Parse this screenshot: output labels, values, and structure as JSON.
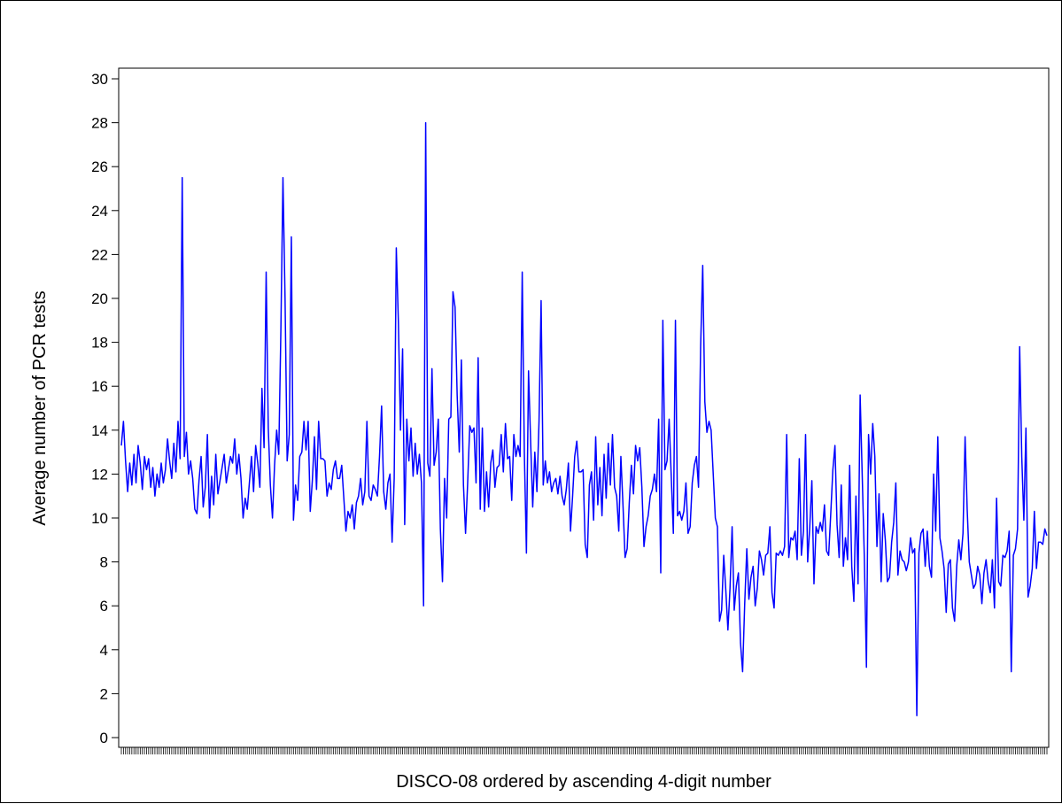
{
  "chart_data": {
    "type": "line",
    "title": "",
    "xlabel": "DISCO-08 ordered by ascending 4-digit number",
    "ylabel": "Average number of PCR tests",
    "ylim": [
      0,
      30
    ],
    "yticks": [
      0,
      2,
      4,
      6,
      8,
      10,
      12,
      14,
      16,
      18,
      20,
      22,
      24,
      26,
      28,
      30
    ],
    "grid": false,
    "legend": "none",
    "line_color": "#0000ff",
    "series": [
      {
        "values": [
          13.3,
          14.4,
          12.6,
          11.2,
          12.5,
          11.5,
          12.9,
          11.6,
          13.3,
          12.5,
          11.3,
          12.8,
          12.2,
          12.7,
          11.4,
          12.3,
          11.0,
          12.0,
          11.4,
          12.5,
          11.6,
          12.2,
          13.6,
          12.6,
          11.8,
          13.4,
          12.1,
          14.4,
          12.7,
          25.5,
          12.8,
          13.9,
          12.0,
          12.6,
          11.8,
          10.4,
          10.2,
          11.7,
          12.8,
          10.5,
          11.4,
          13.8,
          10.0,
          11.9,
          10.6,
          12.9,
          11.1,
          11.7,
          12.3,
          12.9,
          11.6,
          12.2,
          12.8,
          12.5,
          13.6,
          12.0,
          12.9,
          11.8,
          10.0,
          10.9,
          10.4,
          11.6,
          12.8,
          11.2,
          13.3,
          12.5,
          11.4,
          15.9,
          13.2,
          21.2,
          14.1,
          11.5,
          10.0,
          12.4,
          14.0,
          12.9,
          18.5,
          25.5,
          20.0,
          12.6,
          13.8,
          22.8,
          9.9,
          11.5,
          10.8,
          12.8,
          13.0,
          14.4,
          13.1,
          14.4,
          10.3,
          11.7,
          13.7,
          11.3,
          14.4,
          12.7,
          12.7,
          12.6,
          11.0,
          11.6,
          11.3,
          12.2,
          12.6,
          11.8,
          11.8,
          12.4,
          10.9,
          9.4,
          10.3,
          10.0,
          10.6,
          9.5,
          10.7,
          11.0,
          11.8,
          10.6,
          11.2,
          14.4,
          11.0,
          10.8,
          11.5,
          11.3,
          11.0,
          12.8,
          15.1,
          11.2,
          10.4,
          11.6,
          12.0,
          8.9,
          11.8,
          22.3,
          18.9,
          14.0,
          17.7,
          9.7,
          14.5,
          12.6,
          14.1,
          11.9,
          13.4,
          12.0,
          12.9,
          11.6,
          6.0,
          28.0,
          12.5,
          11.9,
          16.8,
          12.4,
          13.0,
          14.5,
          9.5,
          7.1,
          11.8,
          10.0,
          14.5,
          14.6,
          20.3,
          19.6,
          15.6,
          13.0,
          17.2,
          11.5,
          9.3,
          11.6,
          14.2,
          13.9,
          14.1,
          11.6,
          17.3,
          10.4,
          14.1,
          10.3,
          12.1,
          10.5,
          12.5,
          13.1,
          11.4,
          12.3,
          12.4,
          13.8,
          12.1,
          14.3,
          12.7,
          12.8,
          10.8,
          13.8,
          12.8,
          13.3,
          12.8,
          21.2,
          13.0,
          8.4,
          16.7,
          13.5,
          10.5,
          13.0,
          11.2,
          14.4,
          19.9,
          11.5,
          12.6,
          11.6,
          12.1,
          11.2,
          11.6,
          11.8,
          11.1,
          11.9,
          11.0,
          10.6,
          11.3,
          12.5,
          9.4,
          11.0,
          12.8,
          13.5,
          12.1,
          12.1,
          12.2,
          8.8,
          8.2,
          11.5,
          12.1,
          9.9,
          13.7,
          10.6,
          12.3,
          10.1,
          12.9,
          10.9,
          13.4,
          11.5,
          13.8,
          11.4,
          11.0,
          9.4,
          12.8,
          10.6,
          8.2,
          8.6,
          10.7,
          12.4,
          11.1,
          13.3,
          12.6,
          13.2,
          11.4,
          8.7,
          9.6,
          10.1,
          11.0,
          11.3,
          12.0,
          11.2,
          14.5,
          7.5,
          19.0,
          12.2,
          12.6,
          14.5,
          11.9,
          9.3,
          19.0,
          10.1,
          10.3,
          9.9,
          10.3,
          11.6,
          9.3,
          9.6,
          11.6,
          12.4,
          12.8,
          11.4,
          17.8,
          21.5,
          15.3,
          13.9,
          14.4,
          14.0,
          12.0,
          10.0,
          9.6,
          5.3,
          5.8,
          8.3,
          6.7,
          4.9,
          6.8,
          9.6,
          5.8,
          6.9,
          7.5,
          4.3,
          3.0,
          6.1,
          8.6,
          6.3,
          7.3,
          7.8,
          6.0,
          6.8,
          8.5,
          8.1,
          7.4,
          8.3,
          8.4,
          9.6,
          6.6,
          5.9,
          8.4,
          8.3,
          8.5,
          8.3,
          8.7,
          13.8,
          8.2,
          9.1,
          9.0,
          9.4,
          8.1,
          12.7,
          8.3,
          9.4,
          13.8,
          8.0,
          9.6,
          11.7,
          7.0,
          9.6,
          9.3,
          9.8,
          9.4,
          10.6,
          8.5,
          8.3,
          10.2,
          12.2,
          13.3,
          9.7,
          8.2,
          11.5,
          7.8,
          9.1,
          8.1,
          12.4,
          7.8,
          6.2,
          11.0,
          7.0,
          15.6,
          11.9,
          8.2,
          3.2,
          13.8,
          12.0,
          14.3,
          12.8,
          8.7,
          11.1,
          7.1,
          10.2,
          9.0,
          7.1,
          7.3,
          8.9,
          9.8,
          11.6,
          7.4,
          8.5,
          8.1,
          8.0,
          7.6,
          8.0,
          9.1,
          8.4,
          8.6,
          1.0,
          8.4,
          9.3,
          9.5,
          7.8,
          9.4,
          7.8,
          7.3,
          12.0,
          9.4,
          13.7,
          9.1,
          8.5,
          7.7,
          5.7,
          7.9,
          8.1,
          5.9,
          5.3,
          7.8,
          9.0,
          8.1,
          9.3,
          13.7,
          10.4,
          8.0,
          7.4,
          6.8,
          7.0,
          7.8,
          7.4,
          6.1,
          7.5,
          8.1,
          7.1,
          6.6,
          8.1,
          5.9,
          10.9,
          7.1,
          6.9,
          8.3,
          8.2,
          8.5,
          9.4,
          3.0,
          8.3,
          8.6,
          9.5,
          17.8,
          12.8,
          9.9,
          14.1,
          6.4,
          6.9,
          7.7,
          10.3,
          7.7,
          8.9,
          8.9,
          8.8,
          9.5,
          9.2
        ]
      }
    ]
  }
}
